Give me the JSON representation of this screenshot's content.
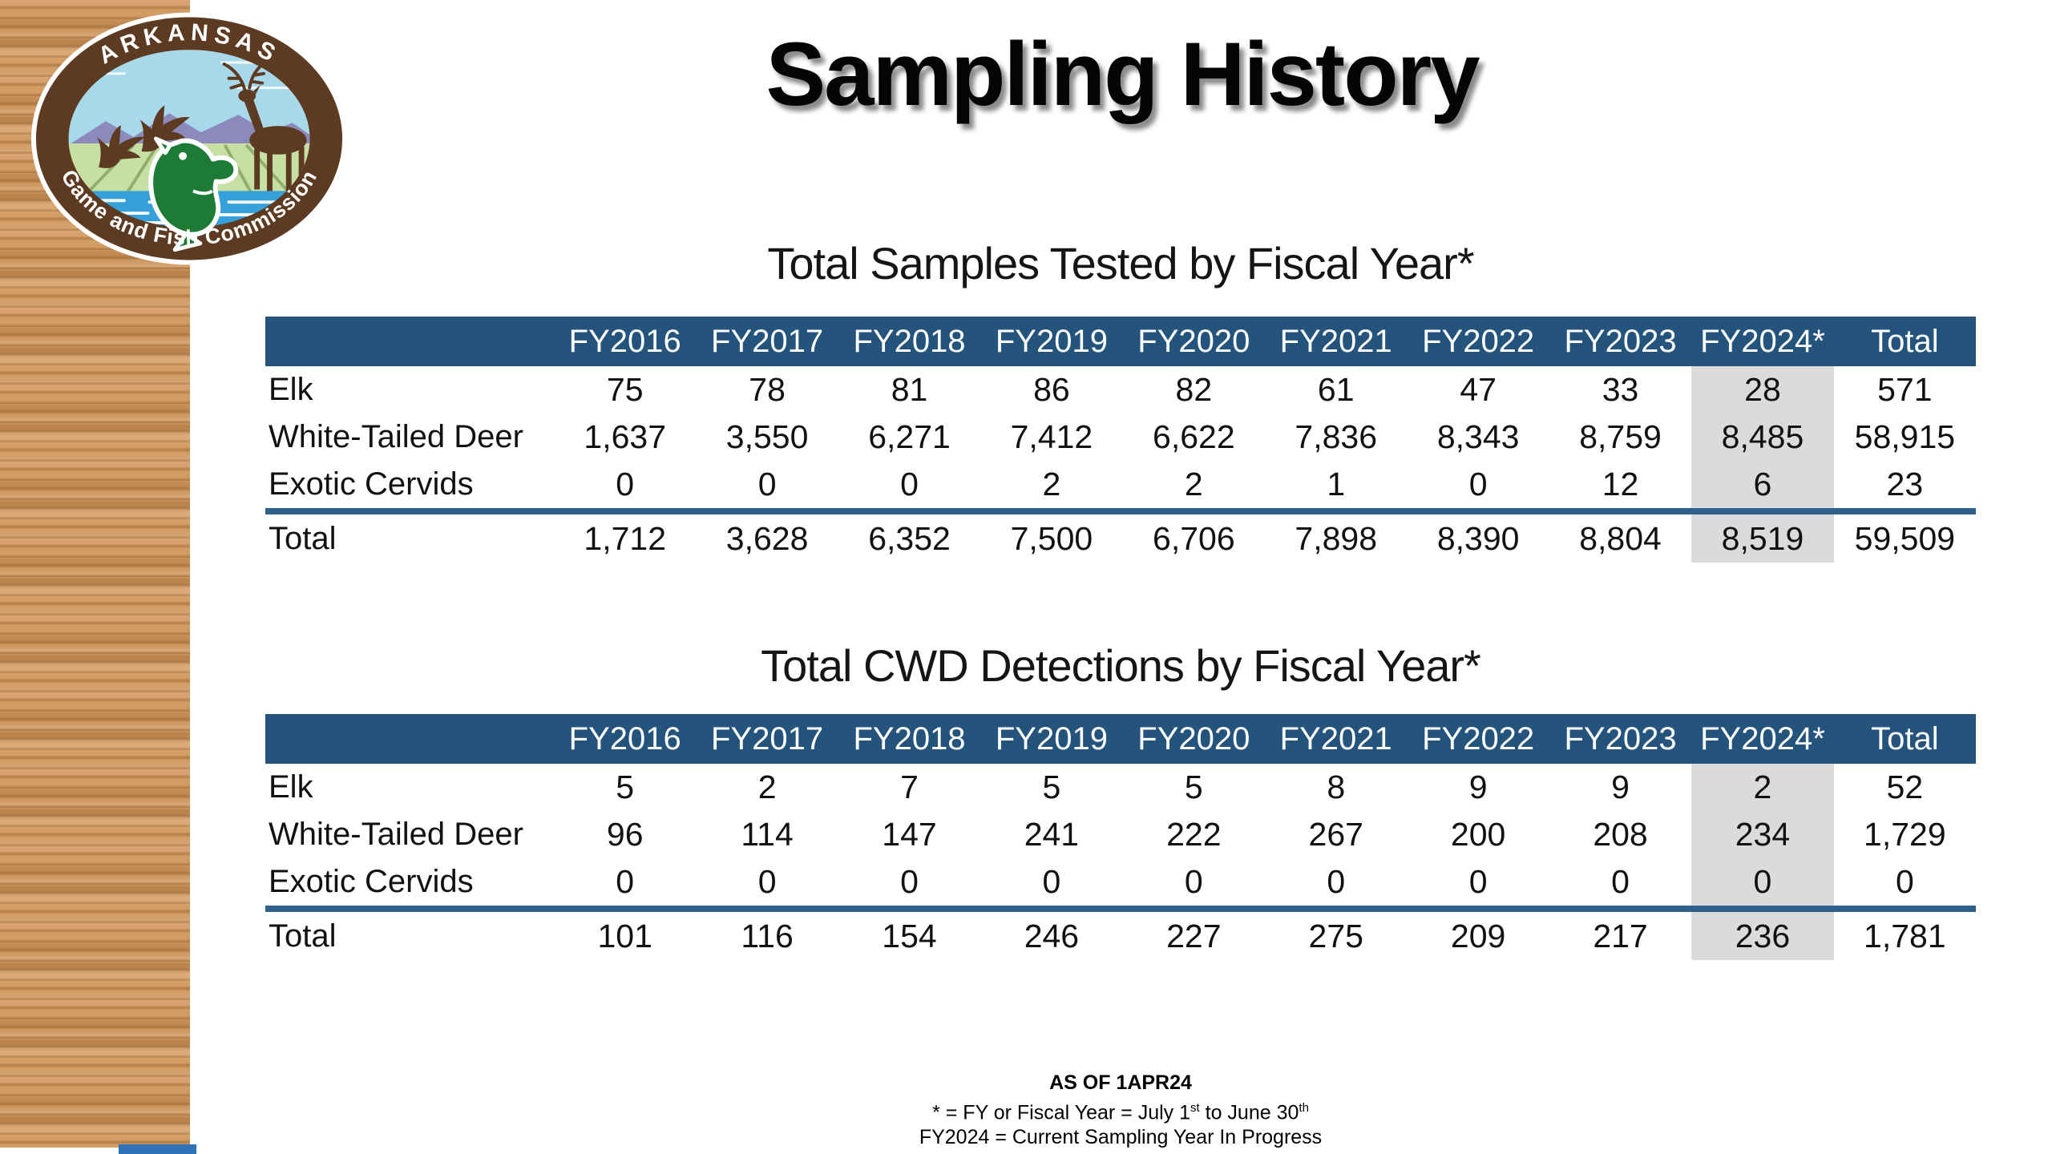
{
  "slide": {
    "title": "Sampling History",
    "logo": {
      "name": "arkansas-game-and-fish-commission-logo",
      "arc_top_text": "ARKANSAS",
      "arc_bottom_text": "Game and Fish Commission"
    },
    "footer": {
      "line1": "AS OF 1APR24",
      "line2_prefix": "* = FY or Fiscal Year = July 1",
      "line2_sup1": "st",
      "line2_mid": " to June 30",
      "line2_sup2": "th",
      "line3": "FY2024 = Current Sampling Year In Progress"
    }
  },
  "colors": {
    "header_blue": "#24537C",
    "divider_blue": "#2E628C",
    "highlight_gray": "#DBDBDB",
    "bottom_accent_blue": "#2E73B8",
    "wood_light": "#D8A470",
    "wood_dark": "#B97F49",
    "logo_ring_brown": "#5D3B23",
    "logo_sky_blue": "#A7D9EA",
    "logo_water_blue": "#35A0D9",
    "logo_field_green": "#C8DFA4",
    "logo_fish_green": "#1E7B36"
  },
  "tables": [
    {
      "title": "Total Samples Tested by Fiscal Year*",
      "columns": [
        "FY2016",
        "FY2017",
        "FY2018",
        "FY2019",
        "FY2020",
        "FY2021",
        "FY2022",
        "FY2023",
        "FY2024*",
        "Total"
      ],
      "highlight_column": "FY2024*",
      "rows": [
        {
          "label": "Elk",
          "values": [
            "75",
            "78",
            "81",
            "86",
            "82",
            "61",
            "47",
            "33",
            "28",
            "571"
          ]
        },
        {
          "label": "White-Tailed Deer",
          "values": [
            "1,637",
            "3,550",
            "6,271",
            "7,412",
            "6,622",
            "7,836",
            "8,343",
            "8,759",
            "8,485",
            "58,915"
          ]
        },
        {
          "label": "Exotic Cervids",
          "values": [
            "0",
            "0",
            "0",
            "2",
            "2",
            "1",
            "0",
            "12",
            "6",
            "23"
          ]
        }
      ],
      "total_row": {
        "label": "Total",
        "values": [
          "1,712",
          "3,628",
          "6,352",
          "7,500",
          "6,706",
          "7,898",
          "8,390",
          "8,804",
          "8,519",
          "59,509"
        ]
      }
    },
    {
      "title": "Total CWD Detections by Fiscal Year*",
      "columns": [
        "FY2016",
        "FY2017",
        "FY2018",
        "FY2019",
        "FY2020",
        "FY2021",
        "FY2022",
        "FY2023",
        "FY2024*",
        "Total"
      ],
      "highlight_column": "FY2024*",
      "rows": [
        {
          "label": "Elk",
          "values": [
            "5",
            "2",
            "7",
            "5",
            "5",
            "8",
            "9",
            "9",
            "2",
            "52"
          ]
        },
        {
          "label": "White-Tailed Deer",
          "values": [
            "96",
            "114",
            "147",
            "241",
            "222",
            "267",
            "200",
            "208",
            "234",
            "1,729"
          ]
        },
        {
          "label": "Exotic Cervids",
          "values": [
            "0",
            "0",
            "0",
            "0",
            "0",
            "0",
            "0",
            "0",
            "0",
            "0"
          ]
        }
      ],
      "total_row": {
        "label": "Total",
        "values": [
          "101",
          "116",
          "154",
          "246",
          "227",
          "275",
          "209",
          "217",
          "236",
          "1,781"
        ]
      }
    }
  ]
}
